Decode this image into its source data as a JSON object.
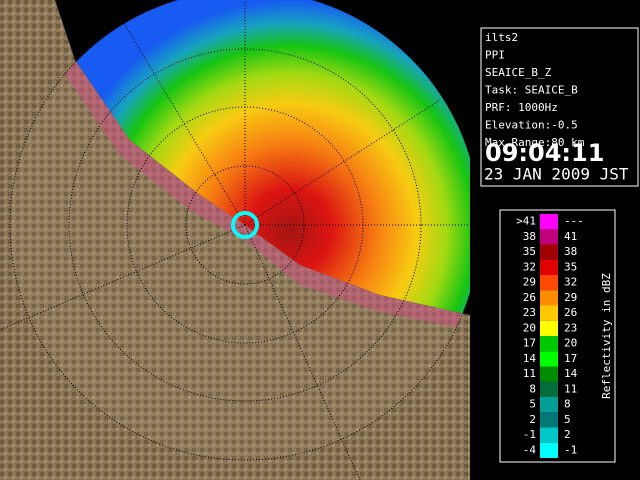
{
  "info": {
    "lines": [
      "ilts2",
      "PPI",
      "SEAICE_B_Z",
      "Task: SEAICE_B",
      "PRF: 1000Hz",
      "Elevation:-0.5",
      "Max Range:80 km"
    ],
    "time": "09:04:11",
    "date": "23 JAN 2009 JST"
  },
  "legend": {
    "title": "Reflectivity in dBZ",
    "rows": [
      {
        "low": ">41",
        "high": "---",
        "color": "#ff00ff"
      },
      {
        "low": "38",
        "high": "41",
        "color": "#c0007a"
      },
      {
        "low": "35",
        "high": "38",
        "color": "#a00000"
      },
      {
        "low": "32",
        "high": "35",
        "color": "#e00000"
      },
      {
        "low": "29",
        "high": "32",
        "color": "#ff4800"
      },
      {
        "low": "26",
        "high": "29",
        "color": "#ff8c00"
      },
      {
        "low": "23",
        "high": "26",
        "color": "#ffc800"
      },
      {
        "low": "20",
        "high": "23",
        "color": "#ffff00"
      },
      {
        "low": "17",
        "high": "20",
        "color": "#00c800"
      },
      {
        "low": "14",
        "high": "17",
        "color": "#00ff00"
      },
      {
        "low": "11",
        "high": "14",
        "color": "#008c00"
      },
      {
        "low": "8",
        "high": "11",
        "color": "#006e3c"
      },
      {
        "low": "5",
        "high": "8",
        "color": "#00a096"
      },
      {
        "low": "2",
        "high": "5",
        "color": "#007878"
      },
      {
        "low": "-1",
        "high": "2",
        "color": "#00c8c8"
      },
      {
        "low": "-4",
        "high": "-1",
        "color": "#00ffff"
      }
    ]
  }
}
